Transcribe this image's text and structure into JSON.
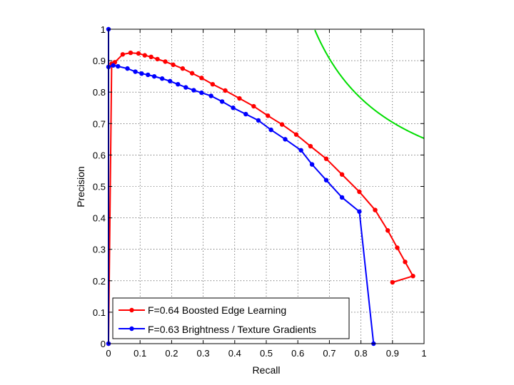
{
  "chart_data": {
    "type": "line",
    "title": "",
    "xlabel": "Recall",
    "ylabel": "Precision",
    "xlim": [
      0,
      1
    ],
    "ylim": [
      0,
      1
    ],
    "xticks": [
      "0",
      "0.1",
      "0.2",
      "0.3",
      "0.4",
      "0.5",
      "0.6",
      "0.7",
      "0.8",
      "0.9",
      "1"
    ],
    "yticks": [
      "0",
      "0.1",
      "0.2",
      "0.3",
      "0.4",
      "0.5",
      "0.6",
      "0.7",
      "0.8",
      "0.9",
      "1"
    ],
    "grid": true,
    "legend_position": "bottom-left",
    "series": [
      {
        "name": "F=0.64 Boosted Edge Learning",
        "color": "#ff0000",
        "marker": "dot",
        "x": [
          0.0,
          0.01,
          0.02,
          0.045,
          0.07,
          0.095,
          0.115,
          0.135,
          0.155,
          0.18,
          0.205,
          0.235,
          0.265,
          0.295,
          0.33,
          0.37,
          0.415,
          0.46,
          0.505,
          0.55,
          0.595,
          0.64,
          0.69,
          0.74,
          0.795,
          0.845,
          0.885,
          0.915,
          0.94,
          0.965,
          0.9
        ],
        "y": [
          0.0,
          0.89,
          0.895,
          0.92,
          0.925,
          0.923,
          0.917,
          0.912,
          0.905,
          0.897,
          0.887,
          0.875,
          0.86,
          0.845,
          0.825,
          0.805,
          0.78,
          0.755,
          0.725,
          0.697,
          0.665,
          0.628,
          0.588,
          0.538,
          0.483,
          0.425,
          0.36,
          0.305,
          0.26,
          0.215,
          0.195
        ]
      },
      {
        "name": "F=0.63 Brightness / Texture Gradients",
        "color": "#0000ff",
        "marker": "dot",
        "x": [
          0.0,
          0.0,
          0.0,
          0.015,
          0.03,
          0.06,
          0.085,
          0.105,
          0.125,
          0.145,
          0.17,
          0.195,
          0.22,
          0.245,
          0.27,
          0.295,
          0.325,
          0.36,
          0.395,
          0.435,
          0.475,
          0.515,
          0.56,
          0.61,
          0.645,
          0.69,
          0.74,
          0.795,
          0.84
        ],
        "y": [
          0.0,
          1.0,
          0.88,
          0.885,
          0.882,
          0.875,
          0.865,
          0.859,
          0.855,
          0.85,
          0.843,
          0.835,
          0.825,
          0.815,
          0.806,
          0.798,
          0.788,
          0.77,
          0.75,
          0.73,
          0.71,
          0.68,
          0.65,
          0.615,
          0.57,
          0.52,
          0.465,
          0.42,
          0.0
        ]
      }
    ],
    "iso_f_curve": {
      "color": "#00dd00",
      "F": 0.79
    }
  }
}
